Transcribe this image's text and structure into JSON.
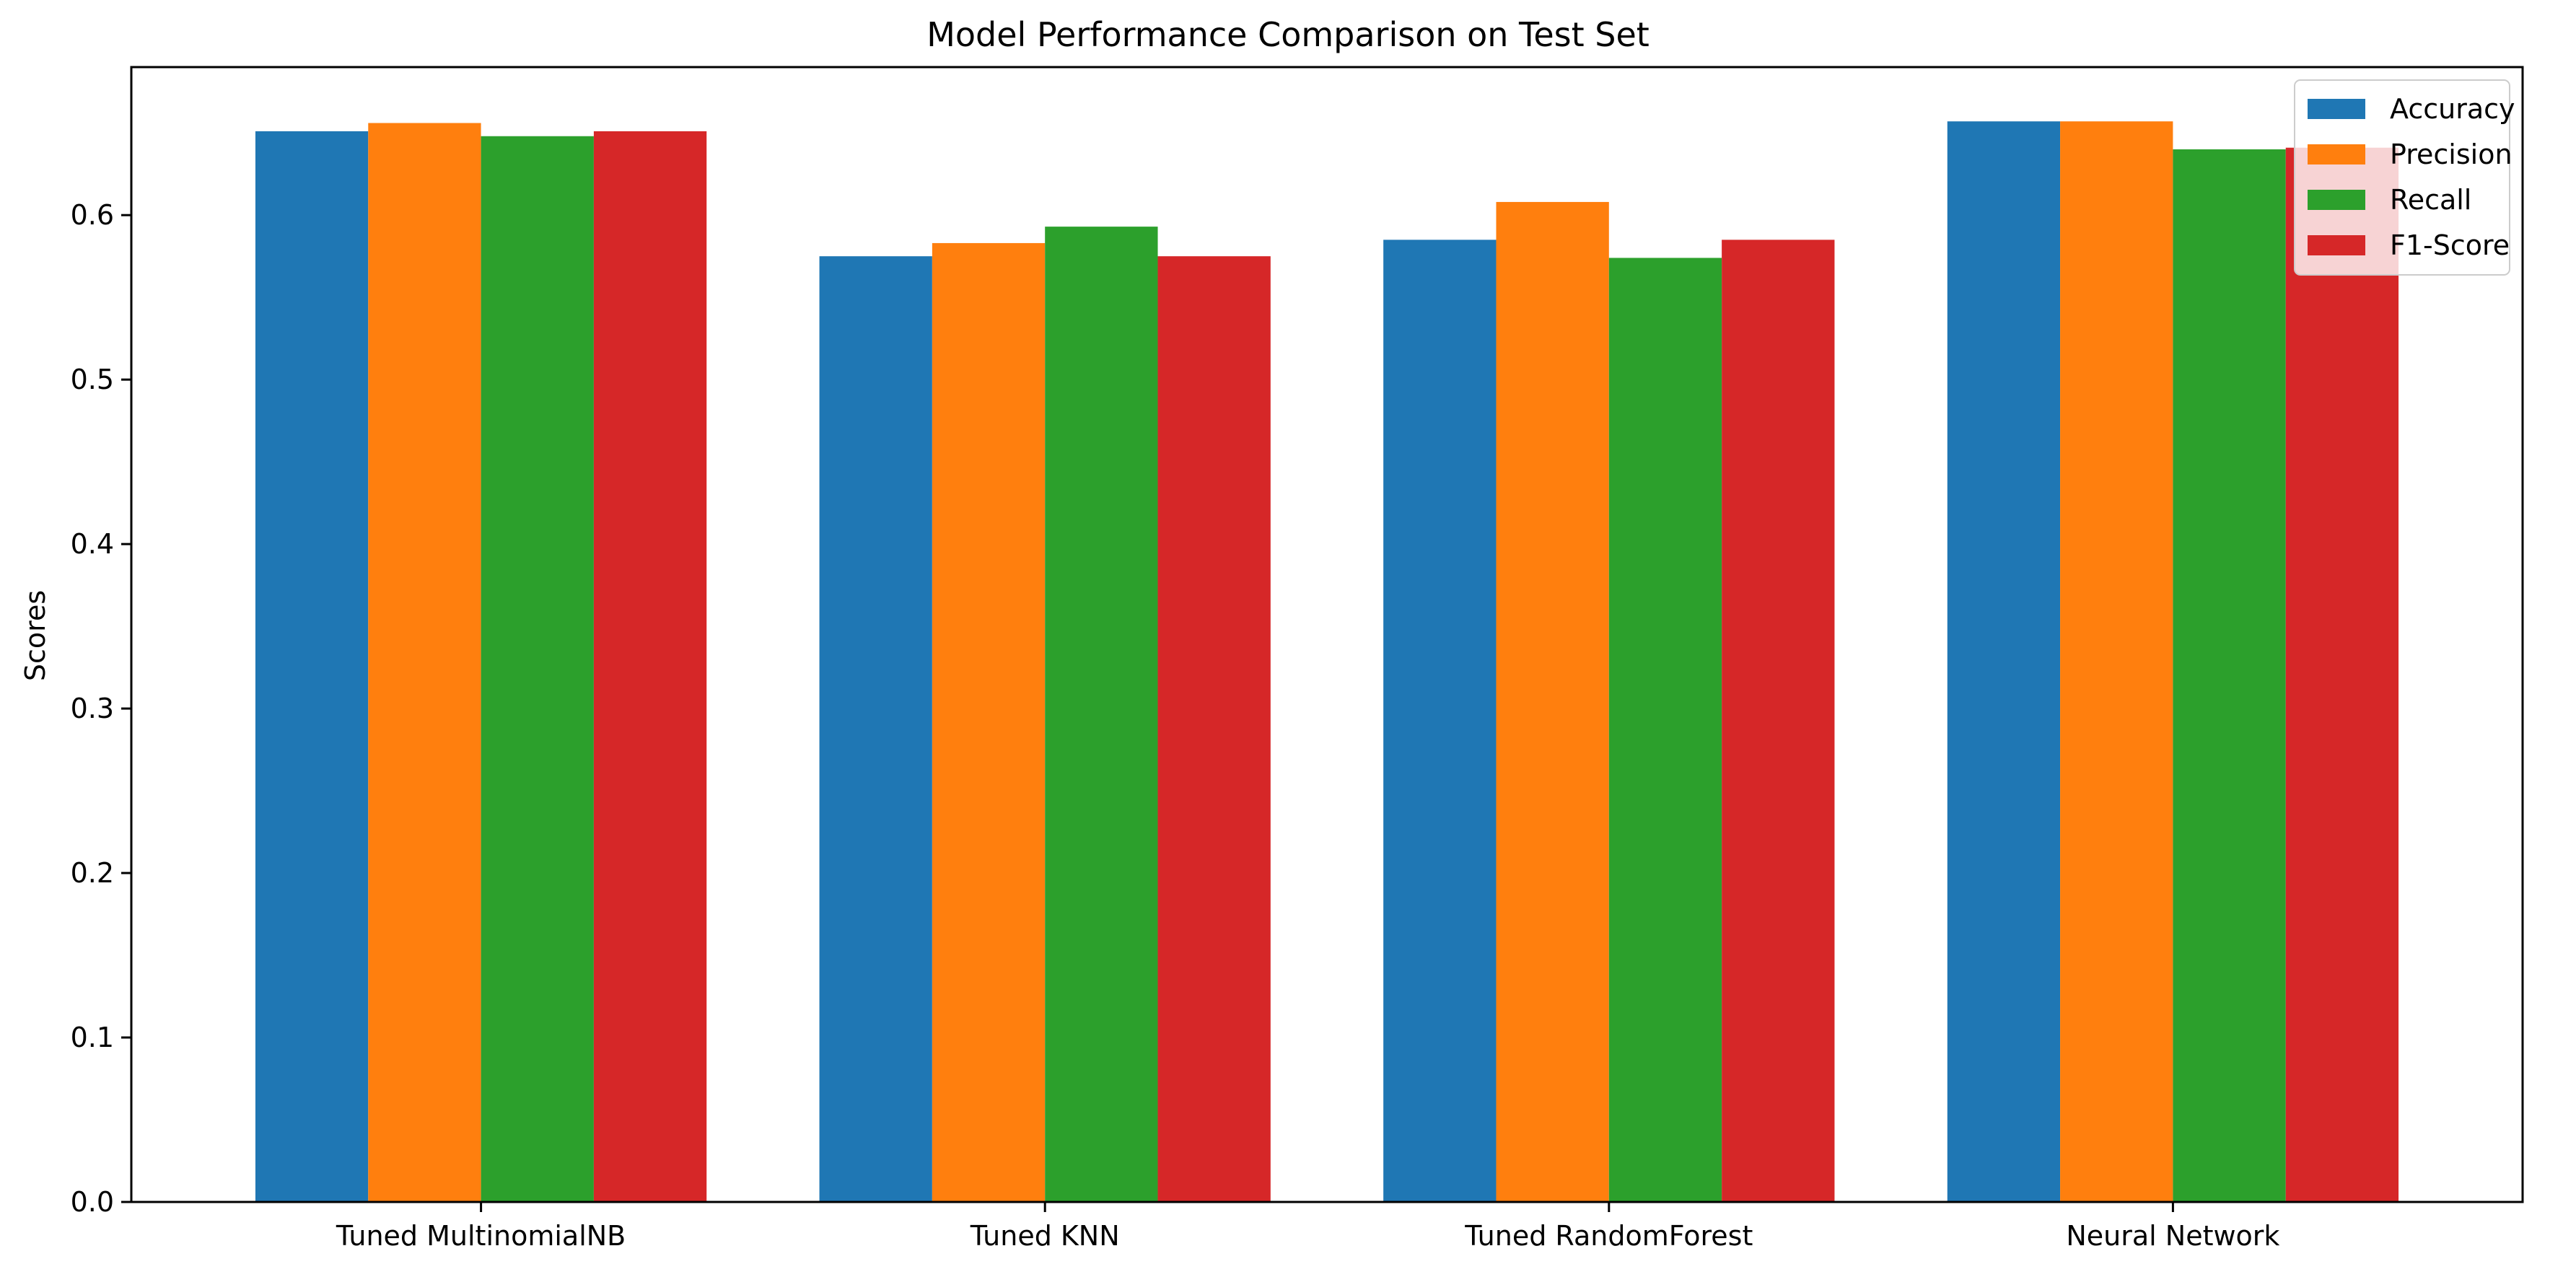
{
  "chart_data": {
    "type": "bar",
    "title": "Model Performance Comparison on Test Set",
    "xlabel": "",
    "ylabel": "Scores",
    "categories": [
      "Tuned MultinomialNB",
      "Tuned KNN",
      "Tuned RandomForest",
      "Neural Network"
    ],
    "series": [
      {
        "name": "Accuracy",
        "color": "#1f77b4",
        "values": [
          0.651,
          0.575,
          0.585,
          0.657
        ]
      },
      {
        "name": "Precision",
        "color": "#ff7f0e",
        "values": [
          0.656,
          0.583,
          0.608,
          0.657
        ]
      },
      {
        "name": "Recall",
        "color": "#2ca02c",
        "values": [
          0.648,
          0.593,
          0.574,
          0.64
        ]
      },
      {
        "name": "F1-Score",
        "color": "#d62728",
        "values": [
          0.651,
          0.575,
          0.585,
          0.641
        ]
      }
    ],
    "ylim": [
      0,
      0.69
    ],
    "yticks": [
      "0.0",
      "0.1",
      "0.2",
      "0.3",
      "0.4",
      "0.5",
      "0.6"
    ],
    "ytick_values": [
      0.0,
      0.1,
      0.2,
      0.3,
      0.4,
      0.5,
      0.6
    ],
    "grid": false,
    "legend_position": "top-right"
  }
}
